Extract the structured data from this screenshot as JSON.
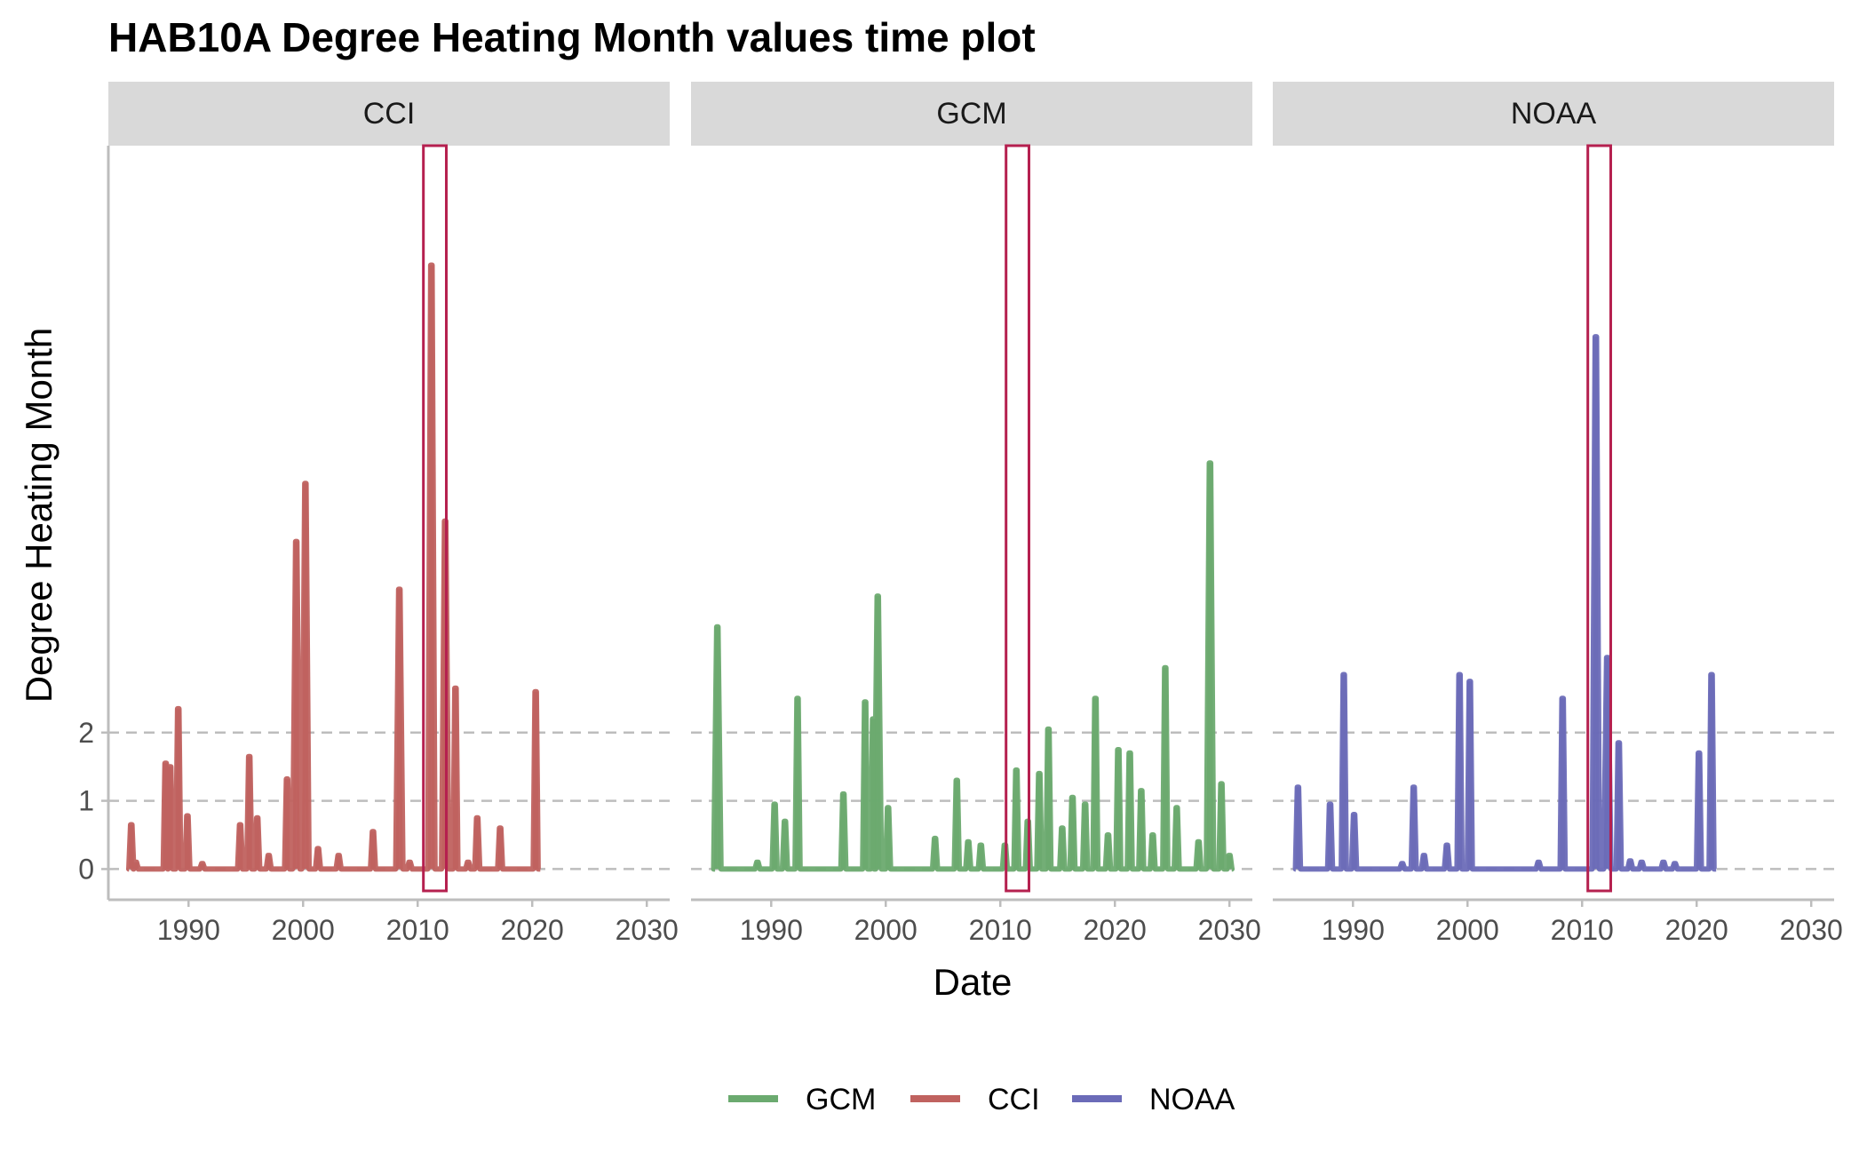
{
  "chart_data": {
    "type": "line",
    "title": "HAB10A Degree Heating Month values time plot",
    "xlabel": "Date",
    "ylabel": "Degree Heating Month",
    "x_ticks": [
      1990,
      2000,
      2010,
      2020,
      2030
    ],
    "y_ticks": [
      0,
      1,
      2
    ],
    "xlim": [
      1983,
      2032
    ],
    "ylim": [
      -0.45,
      10.6
    ],
    "grid": "dashed horizontal lines at y = 0, 1, 2",
    "legend_position": "bottom",
    "highlight_window": [
      2010.5,
      2012.5
    ],
    "highlight_color": "#B5204F",
    "panels": [
      {
        "label": "CCI",
        "series": "CCI",
        "color": "#C0625F",
        "peaks": [
          [
            1985.0,
            0.65
          ],
          [
            1985.4,
            0.1
          ],
          [
            1988.0,
            1.55
          ],
          [
            1988.4,
            1.5
          ],
          [
            1989.1,
            2.35
          ],
          [
            1989.9,
            0.78
          ],
          [
            1991.2,
            0.08
          ],
          [
            1994.5,
            0.65
          ],
          [
            1995.3,
            1.65
          ],
          [
            1996.0,
            0.75
          ],
          [
            1997.0,
            0.2
          ],
          [
            1998.6,
            1.32
          ],
          [
            1999.4,
            4.8
          ],
          [
            2000.2,
            5.65
          ],
          [
            2001.3,
            0.3
          ],
          [
            2003.1,
            0.2
          ],
          [
            2006.1,
            0.55
          ],
          [
            2008.4,
            4.1
          ],
          [
            2009.3,
            0.1
          ],
          [
            2011.2,
            8.85
          ],
          [
            2012.4,
            5.1
          ],
          [
            2013.3,
            2.65
          ],
          [
            2014.4,
            0.1
          ],
          [
            2015.2,
            0.75
          ],
          [
            2017.2,
            0.6
          ],
          [
            2020.3,
            2.6
          ]
        ],
        "data_end": 2020.7
      },
      {
        "label": "GCM",
        "series": "GCM",
        "color": "#6BAA6F",
        "peaks": [
          [
            1985.3,
            3.55
          ],
          [
            1988.8,
            0.1
          ],
          [
            1990.3,
            0.95
          ],
          [
            1991.2,
            0.7
          ],
          [
            1992.3,
            2.5
          ],
          [
            1996.3,
            1.1
          ],
          [
            1998.2,
            2.45
          ],
          [
            1998.9,
            2.2
          ],
          [
            1999.3,
            4.0
          ],
          [
            2000.2,
            0.9
          ],
          [
            2004.3,
            0.45
          ],
          [
            2006.2,
            1.3
          ],
          [
            2007.2,
            0.4
          ],
          [
            2008.3,
            0.35
          ],
          [
            2010.4,
            0.35
          ],
          [
            2011.4,
            1.45
          ],
          [
            2012.4,
            0.7
          ],
          [
            2013.4,
            1.4
          ],
          [
            2014.2,
            2.05
          ],
          [
            2015.4,
            0.6
          ],
          [
            2016.3,
            1.05
          ],
          [
            2017.4,
            0.95
          ],
          [
            2018.3,
            2.5
          ],
          [
            2019.4,
            0.5
          ],
          [
            2020.3,
            1.75
          ],
          [
            2021.3,
            1.7
          ],
          [
            2022.3,
            1.15
          ],
          [
            2023.3,
            0.5
          ],
          [
            2024.4,
            2.95
          ],
          [
            2025.4,
            0.9
          ],
          [
            2027.3,
            0.4
          ],
          [
            2028.3,
            5.95
          ],
          [
            2029.3,
            1.25
          ],
          [
            2030.0,
            0.2
          ]
        ],
        "data_end": 2030.2
      },
      {
        "label": "NOAA",
        "series": "NOAA",
        "color": "#6B6BB8",
        "peaks": [
          [
            1985.2,
            1.2
          ],
          [
            1988.0,
            0.95
          ],
          [
            1989.2,
            2.85
          ],
          [
            1990.1,
            0.8
          ],
          [
            1994.3,
            0.08
          ],
          [
            1995.3,
            1.2
          ],
          [
            1996.2,
            0.2
          ],
          [
            1998.2,
            0.35
          ],
          [
            1999.3,
            2.85
          ],
          [
            2000.2,
            2.75
          ],
          [
            2006.2,
            0.1
          ],
          [
            2008.3,
            2.5
          ],
          [
            2011.2,
            7.8
          ],
          [
            2012.2,
            3.1
          ],
          [
            2013.2,
            1.85
          ],
          [
            2014.2,
            0.12
          ],
          [
            2015.2,
            0.1
          ],
          [
            2017.1,
            0.1
          ],
          [
            2018.1,
            0.08
          ],
          [
            2020.2,
            1.7
          ],
          [
            2021.3,
            2.85
          ]
        ],
        "data_end": 2021.7
      }
    ],
    "legend": [
      {
        "name": "GCM",
        "color": "#6BAA6F"
      },
      {
        "name": "CCI",
        "color": "#C0625F"
      },
      {
        "name": "NOAA",
        "color": "#6B6BB8"
      }
    ]
  }
}
